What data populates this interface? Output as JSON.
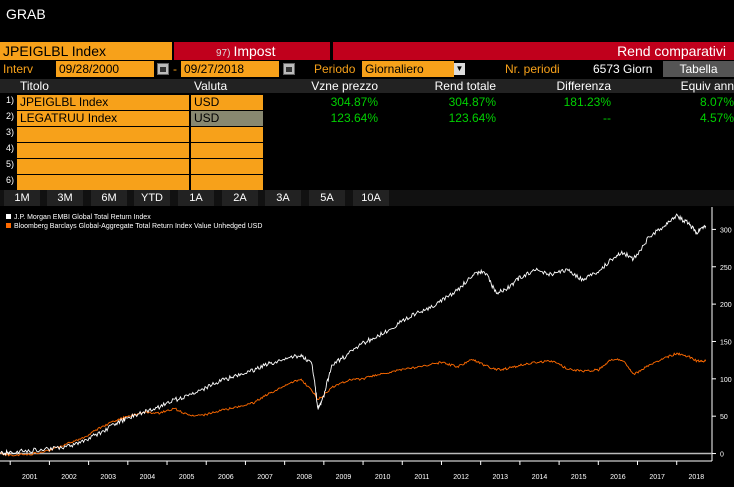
{
  "app": {
    "title": "GRAB"
  },
  "header": {
    "ticker": "JPEIGLBL Index",
    "impost_num": "97)",
    "impost_label": "Impost",
    "title": "Rend comparativi"
  },
  "controls": {
    "interval_label": "Interv",
    "date_from": "09/28/2000",
    "date_sep": "-",
    "date_to": "09/27/2018",
    "period_label": "Periodo",
    "period_value": "Giornaliero",
    "nperiods_label": "Nr. periodi",
    "nperiods_value": "6573 Giorn",
    "tabella_button": "Tabella"
  },
  "table": {
    "headers": [
      "Titolo",
      "Valuta",
      "Vzne prezzo",
      "Rend totale",
      "Differenza",
      "Equiv ann"
    ],
    "rows": [
      {
        "n": "1)",
        "ticker": "JPEIGLBL Index",
        "currency": "USD",
        "price_change": "304.87%",
        "total_return": "304.87%",
        "difference": "181.23%",
        "equiv_ann": "8.07%"
      },
      {
        "n": "2)",
        "ticker": "LEGATRUU Index",
        "currency": "USD",
        "price_change": "123.64%",
        "total_return": "123.64%",
        "difference": "--",
        "equiv_ann": "4.57%"
      },
      {
        "n": "3)"
      },
      {
        "n": "4)"
      },
      {
        "n": "5)"
      },
      {
        "n": "6)"
      }
    ]
  },
  "periods": [
    "1M",
    "3M",
    "6M",
    "YTD",
    "1A",
    "2A",
    "3A",
    "5A",
    "10A"
  ],
  "chart_data": {
    "type": "line",
    "series": [
      {
        "name": "J.P. Morgan EMBI Global Total Return Index",
        "color": "#ffffff",
        "x": [
          2000.74,
          2001.0,
          2001.5,
          2002.0,
          2002.5,
          2002.9,
          2003.3,
          2003.7,
          2004.0,
          2004.4,
          2004.8,
          2005.2,
          2005.6,
          2006.0,
          2006.4,
          2006.8,
          2007.2,
          2007.6,
          2008.0,
          2008.4,
          2008.7,
          2008.85,
          2008.95,
          2009.2,
          2009.6,
          2010.0,
          2010.4,
          2010.8,
          2011.2,
          2011.6,
          2012.0,
          2012.4,
          2012.8,
          2013.1,
          2013.4,
          2013.7,
          2014.0,
          2014.4,
          2014.8,
          2015.2,
          2015.6,
          2016.0,
          2016.3,
          2016.6,
          2016.9,
          2017.3,
          2017.7,
          2018.0,
          2018.3,
          2018.5,
          2018.74
        ],
        "y": [
          0,
          2,
          4,
          6,
          10,
          18,
          28,
          40,
          48,
          55,
          62,
          72,
          78,
          88,
          98,
          104,
          112,
          120,
          125,
          132,
          120,
          60,
          68,
          118,
          132,
          148,
          158,
          170,
          184,
          192,
          205,
          218,
          240,
          244,
          214,
          222,
          236,
          246,
          240,
          246,
          232,
          244,
          258,
          270,
          260,
          290,
          305,
          318,
          308,
          296,
          304.87
        ]
      },
      {
        "name": "Bloomberg Barclays Global-Aggregate Total Return Index Value Unhedged USD",
        "color": "#ff6a00",
        "x": [
          2000.74,
          2001.0,
          2001.5,
          2002.0,
          2002.5,
          2002.9,
          2003.3,
          2003.7,
          2004.0,
          2004.4,
          2004.8,
          2005.2,
          2005.6,
          2006.0,
          2006.4,
          2006.8,
          2007.2,
          2007.6,
          2008.0,
          2008.4,
          2008.7,
          2008.85,
          2009.2,
          2009.6,
          2010.0,
          2010.4,
          2010.8,
          2011.2,
          2011.6,
          2012.0,
          2012.4,
          2012.8,
          2013.1,
          2013.4,
          2013.7,
          2014.0,
          2014.4,
          2014.8,
          2015.2,
          2015.6,
          2016.0,
          2016.3,
          2016.6,
          2016.9,
          2017.3,
          2017.7,
          2018.0,
          2018.3,
          2018.5,
          2018.74
        ],
        "y": [
          0,
          -2,
          -1,
          4,
          14,
          22,
          35,
          44,
          50,
          55,
          54,
          60,
          50,
          52,
          58,
          62,
          68,
          80,
          90,
          100,
          84,
          72,
          88,
          98,
          100,
          106,
          110,
          114,
          118,
          122,
          116,
          126,
          118,
          112,
          114,
          118,
          122,
          124,
          114,
          110,
          112,
          125,
          126,
          106,
          118,
          128,
          134,
          130,
          124,
          123.64
        ]
      }
    ],
    "x_ticks": [
      "2001",
      "2002",
      "2003",
      "2004",
      "2005",
      "2006",
      "2007",
      "2008",
      "2009",
      "2010",
      "2011",
      "2012",
      "2013",
      "2014",
      "2015",
      "2016",
      "2017",
      "2018"
    ],
    "y_ticks": [
      "0",
      "50",
      "100",
      "150",
      "200",
      "250",
      "300"
    ],
    "xlim": [
      2000.74,
      2018.9
    ],
    "ylim": [
      -10,
      330
    ],
    "legend_position": "top-left",
    "grid": false
  }
}
